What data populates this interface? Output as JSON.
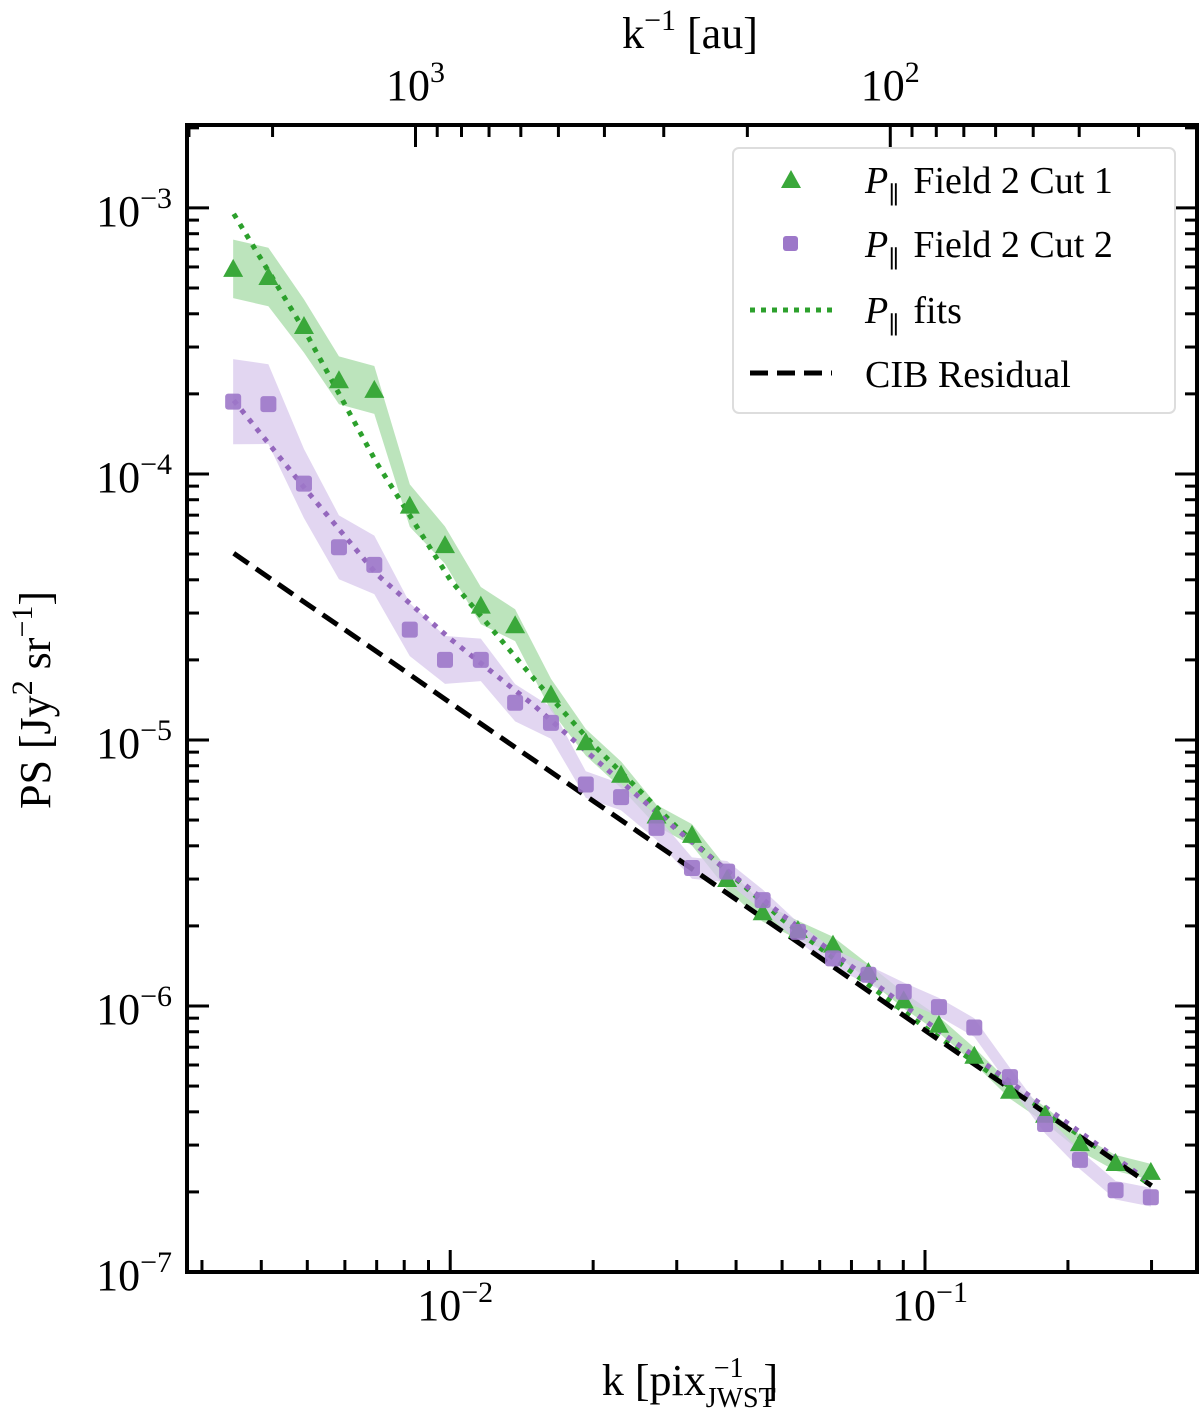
{
  "chart_data": {
    "type": "line",
    "xlabel": {
      "base": "k [pix",
      "sub": "JWST",
      "sup": "−1",
      "end": "]"
    },
    "ylabel": {
      "pre": "PS [Jy",
      "sup1": "2",
      "mid": " sr",
      "sup2": "−1",
      "end": "]"
    },
    "top_xlabel": {
      "pre": "k",
      "sup": "−1",
      "end": " [au]"
    },
    "x_scale": "log",
    "y_scale": "log",
    "xlim": [
      0.00279,
      0.374
    ],
    "ylim": [
      1e-07,
      0.00205
    ],
    "top_axis_conversion_au_times_k": 8.45,
    "x_ticks": [
      {
        "value": 0.01,
        "base": "10",
        "exp": "−2"
      },
      {
        "value": 0.1,
        "base": "10",
        "exp": "−1"
      }
    ],
    "y_ticks": [
      {
        "value": 0.001,
        "base": "10",
        "exp": "−3"
      },
      {
        "value": 0.0001,
        "base": "10",
        "exp": "−4"
      },
      {
        "value": 1e-05,
        "base": "10",
        "exp": "−5"
      },
      {
        "value": 1e-06,
        "base": "10",
        "exp": "−6"
      },
      {
        "value": 1e-07,
        "base": "10",
        "exp": "−7"
      }
    ],
    "top_ticks": [
      {
        "value": 1000,
        "base": "10",
        "exp": "3"
      },
      {
        "value": 100,
        "base": "10",
        "exp": "2"
      }
    ],
    "grid": false,
    "legend_position": "top-right",
    "k": [
      0.00349,
      0.00414,
      0.00492,
      0.00583,
      0.00692,
      0.00822,
      0.00975,
      0.0116,
      0.0137,
      0.0163,
      0.0193,
      0.0229,
      0.0272,
      0.0323,
      0.0383,
      0.0455,
      0.054,
      0.064,
      0.076,
      0.0902,
      0.107,
      0.127,
      0.151,
      0.179,
      0.212,
      0.252,
      0.299
    ],
    "series": [
      {
        "name": "Field 2 Cut 1",
        "legend_symbol": "P",
        "legend_sub": "∥",
        "marker": "triangle",
        "color": "#3aa83a",
        "band_color": "#a6dba6",
        "values": [
          0.00059,
          0.00055,
          0.00036,
          0.000225,
          0.000207,
          7.6e-05,
          5.4e-05,
          3.2e-05,
          2.7e-05,
          1.48e-05,
          9.8e-06,
          7.4e-06,
          5.2e-06,
          4.4e-06,
          3e-06,
          2.25e-06,
          1.93e-06,
          1.7e-06,
          1.34e-06,
          1.05e-06,
          8.5e-07,
          6.5e-07,
          4.8e-07,
          3.9e-07,
          3.05e-07,
          2.57e-07,
          2.38e-07
        ],
        "band_halfwidth_dex": [
          0.11,
          0.11,
          0.1,
          0.09,
          0.09,
          0.08,
          0.07,
          0.07,
          0.06,
          0.06,
          0.05,
          0.05,
          0.04,
          0.04,
          0.04,
          0.035,
          0.035,
          0.03,
          0.03,
          0.03,
          0.03,
          0.03,
          0.03,
          0.03,
          0.03,
          0.03,
          0.03
        ]
      },
      {
        "name": "Field 2 Cut 2",
        "legend_symbol": "P",
        "legend_sub": "∥",
        "marker": "square",
        "color": "#9d78c9",
        "band_color": "#d8c8ec",
        "values": [
          0.000187,
          0.000183,
          9.2e-05,
          5.3e-05,
          4.55e-05,
          2.6e-05,
          2e-05,
          2e-05,
          1.38e-05,
          1.16e-05,
          6.8e-06,
          6.1e-06,
          4.67e-06,
          3.3e-06,
          3.2e-06,
          2.5e-06,
          1.9e-06,
          1.51e-06,
          1.31e-06,
          1.13e-06,
          9.9e-07,
          8.3e-07,
          5.4e-07,
          3.6e-07,
          2.64e-07,
          2.03e-07,
          1.91e-07
        ],
        "band_halfwidth_dex": [
          0.16,
          0.15,
          0.13,
          0.12,
          0.11,
          0.1,
          0.09,
          0.08,
          0.07,
          0.06,
          0.05,
          0.05,
          0.045,
          0.04,
          0.04,
          0.04,
          0.035,
          0.035,
          0.035,
          0.035,
          0.035,
          0.035,
          0.035,
          0.035,
          0.035,
          0.035,
          0.035
        ]
      }
    ],
    "fits": {
      "name": "fits",
      "legend_symbol": "P",
      "legend_sub": "∥",
      "style": "dotted",
      "k": [
        0.0035,
        0.005,
        0.007,
        0.01,
        0.015,
        0.02,
        0.03,
        0.05,
        0.1,
        0.3
      ],
      "lines": [
        {
          "color": "#2ca02c",
          "values": [
            0.00095,
            0.000332,
            0.00011,
            4e-05,
            1.7e-05,
            9.6e-06,
            4.7e-06,
            2.12e-06,
            8.3e-07,
            2.11e-07
          ]
        },
        {
          "color": "#9467bd",
          "values": [
            0.000189,
            8.6e-05,
            4.2e-05,
            2.4e-05,
            1.35e-05,
            8.6e-06,
            4.6e-06,
            2.2e-06,
            8.8e-07,
            2.15e-07
          ]
        }
      ]
    },
    "cib": {
      "name": "CIB Residual",
      "style": "dashed",
      "color": "#000000",
      "k": [
        0.0035,
        0.005,
        0.007,
        0.01,
        0.015,
        0.02,
        0.03,
        0.05,
        0.1,
        0.3
      ],
      "values": [
        5.03e-05,
        3.24e-05,
        2.15e-05,
        1.38e-05,
        8.4e-06,
        5.9e-06,
        3.59e-06,
        1.91e-06,
        8.1e-07,
        2.11e-07
      ]
    }
  }
}
